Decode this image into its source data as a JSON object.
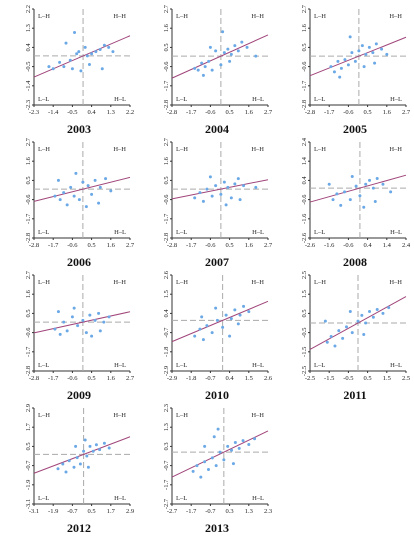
{
  "colors": {
    "points": "#6aa8e6",
    "trend_line": "#a0457a",
    "quadrant_lines": "#aaaaaa",
    "axes": "#333333"
  },
  "chart_data": [
    {
      "type": "scatter",
      "title": "2003",
      "xticks": [
        "-2.3",
        "-1.4",
        "-0.5",
        "0.4",
        "1.3",
        "2.2"
      ],
      "yticks": [
        "2.2",
        "1.3",
        "0.4",
        "-0.5",
        "-1.4",
        "-2.3"
      ],
      "xlim": [
        -2.3,
        2.2
      ],
      "ylim": [
        -2.3,
        2.2
      ],
      "quadrant_labels": {
        "tl": "L–H",
        "tr": "H–H",
        "bl": "L–L",
        "br": "H–L"
      },
      "slope": 0.43,
      "points": [
        [
          -1.6,
          -0.5
        ],
        [
          -1.4,
          -0.6
        ],
        [
          -1.1,
          -0.3
        ],
        [
          -0.9,
          -0.5
        ],
        [
          -0.6,
          -0.2
        ],
        [
          -0.5,
          -0.6
        ],
        [
          -0.3,
          0.1
        ],
        [
          -0.2,
          0.2
        ],
        [
          -0.1,
          -0.7
        ],
        [
          0.1,
          0.4
        ],
        [
          0.2,
          0.0
        ],
        [
          0.4,
          0.1
        ],
        [
          0.6,
          0.2
        ],
        [
          0.8,
          0.3
        ],
        [
          1.0,
          0.5
        ],
        [
          1.2,
          0.4
        ],
        [
          1.4,
          0.2
        ],
        [
          -0.4,
          1.1
        ],
        [
          0.3,
          -0.4
        ],
        [
          0.9,
          -0.6
        ],
        [
          -0.8,
          0.6
        ]
      ]
    },
    {
      "type": "scatter",
      "title": "2004",
      "xticks": [
        "-2.8",
        "-1.7",
        "-0.6",
        "0.5",
        "1.6",
        "2.7"
      ],
      "yticks": [
        "2.7",
        "1.6",
        "0.5",
        "-0.6",
        "-1.7",
        "-2.8"
      ],
      "xlim": [
        -2.8,
        2.7
      ],
      "ylim": [
        -2.8,
        2.7
      ],
      "quadrant_labels": {
        "tl": "L–H",
        "tr": "H–H",
        "bl": "L–L",
        "br": "H–L"
      },
      "slope": 0.45,
      "points": [
        [
          -1.5,
          -0.7
        ],
        [
          -1.3,
          -0.8
        ],
        [
          -1.1,
          -0.4
        ],
        [
          -0.9,
          -0.6
        ],
        [
          -0.7,
          -0.3
        ],
        [
          -0.5,
          -0.8
        ],
        [
          -0.3,
          0.3
        ],
        [
          0.0,
          -0.5
        ],
        [
          0.2,
          0.2
        ],
        [
          0.4,
          0.4
        ],
        [
          0.6,
          0.1
        ],
        [
          0.8,
          0.6
        ],
        [
          1.0,
          0.3
        ],
        [
          1.2,
          0.8
        ],
        [
          1.5,
          0.5
        ],
        [
          0.1,
          1.4
        ],
        [
          -0.6,
          0.5
        ],
        [
          0.5,
          -0.3
        ],
        [
          -1.0,
          -1.1
        ],
        [
          2.0,
          0.0
        ]
      ]
    },
    {
      "type": "scatter",
      "title": "2005",
      "xticks": [
        "-2.8",
        "-1.7",
        "-0.6",
        "0.5",
        "1.6",
        "2.7"
      ],
      "yticks": [
        "2.7",
        "1.6",
        "0.5",
        "-0.6",
        "-1.7",
        "-2.8"
      ],
      "xlim": [
        -2.8,
        2.7
      ],
      "ylim": [
        -2.8,
        2.7
      ],
      "quadrant_labels": {
        "tl": "L–H",
        "tr": "H–H",
        "bl": "L–L",
        "br": "H–L"
      },
      "slope": 0.4,
      "points": [
        [
          -1.6,
          -0.6
        ],
        [
          -1.4,
          -0.9
        ],
        [
          -1.2,
          -0.3
        ],
        [
          -1.0,
          -0.7
        ],
        [
          -0.8,
          -0.2
        ],
        [
          -0.6,
          -0.5
        ],
        [
          -0.4,
          0.2
        ],
        [
          -0.2,
          -0.3
        ],
        [
          0.0,
          0.3
        ],
        [
          0.2,
          0.6
        ],
        [
          0.4,
          0.1
        ],
        [
          0.6,
          0.5
        ],
        [
          0.8,
          0.2
        ],
        [
          1.0,
          0.7
        ],
        [
          1.3,
          0.4
        ],
        [
          1.6,
          0.1
        ],
        [
          -0.5,
          1.1
        ],
        [
          0.3,
          -0.6
        ],
        [
          -1.1,
          -1.2
        ],
        [
          0.9,
          -0.4
        ]
      ]
    },
    {
      "type": "scatter",
      "title": "2006",
      "xticks": [
        "-2.8",
        "-1.7",
        "-0.6",
        "0.5",
        "1.6",
        "2.7"
      ],
      "yticks": [
        "2.7",
        "1.6",
        "0.5",
        "-0.6",
        "-1.7",
        "-2.8"
      ],
      "xlim": [
        -2.8,
        2.7
      ],
      "ylim": [
        -2.8,
        2.7
      ],
      "quadrant_labels": {
        "tl": "L–H",
        "tr": "H–H",
        "bl": "L–L",
        "br": "H–L"
      },
      "slope": 0.25,
      "points": [
        [
          -1.6,
          -0.4
        ],
        [
          -1.3,
          -0.6
        ],
        [
          -1.1,
          -0.2
        ],
        [
          -0.9,
          -0.9
        ],
        [
          -0.7,
          0.1
        ],
        [
          -0.5,
          -0.4
        ],
        [
          -0.2,
          -0.6
        ],
        [
          0.0,
          0.4
        ],
        [
          0.3,
          0.2
        ],
        [
          0.5,
          -0.3
        ],
        [
          0.7,
          0.5
        ],
        [
          1.0,
          0.1
        ],
        [
          1.3,
          0.6
        ],
        [
          -0.4,
          0.9
        ],
        [
          0.2,
          -1.0
        ],
        [
          0.9,
          -0.8
        ],
        [
          -1.4,
          0.5
        ],
        [
          1.6,
          -0.1
        ]
      ]
    },
    {
      "type": "scatter",
      "title": "2007",
      "xticks": [
        "-2.8",
        "-1.7",
        "-0.6",
        "0.5",
        "1.6",
        "2.7"
      ],
      "yticks": [
        "2.7",
        "1.6",
        "0.5",
        "-0.6",
        "-1.7",
        "-2.8"
      ],
      "xlim": [
        -2.8,
        2.7
      ],
      "ylim": [
        -2.8,
        2.7
      ],
      "quadrant_labels": {
        "tl": "L–H",
        "tr": "H–H",
        "bl": "L–L",
        "br": "H–L"
      },
      "slope": 0.2,
      "points": [
        [
          -1.5,
          -0.5
        ],
        [
          -1.2,
          -0.2
        ],
        [
          -1.0,
          -0.7
        ],
        [
          -0.8,
          0.0
        ],
        [
          -0.5,
          -0.4
        ],
        [
          -0.3,
          0.2
        ],
        [
          0.0,
          -0.3
        ],
        [
          0.2,
          0.4
        ],
        [
          0.4,
          0.1
        ],
        [
          0.6,
          -0.5
        ],
        [
          0.8,
          0.3
        ],
        [
          1.0,
          0.6
        ],
        [
          1.3,
          0.2
        ],
        [
          -0.6,
          0.7
        ],
        [
          0.3,
          -0.9
        ],
        [
          1.1,
          -0.6
        ],
        [
          2.0,
          0.1
        ]
      ]
    },
    {
      "type": "scatter",
      "title": "2008",
      "xticks": [
        "-2.6",
        "-1.6",
        "-0.6",
        "0.4",
        "1.4",
        "2.4"
      ],
      "yticks": [
        "2.4",
        "1.4",
        "0.4",
        "-0.6",
        "-1.6",
        "-2.6"
      ],
      "xlim": [
        -2.6,
        2.4
      ],
      "ylim": [
        -2.6,
        2.4
      ],
      "quadrant_labels": {
        "tl": "L–H",
        "tr": "H–H",
        "bl": "L–L",
        "br": "H–L"
      },
      "slope": 0.28,
      "points": [
        [
          -1.4,
          -0.6
        ],
        [
          -1.2,
          -0.3
        ],
        [
          -1.0,
          -0.9
        ],
        [
          -0.8,
          -0.2
        ],
        [
          -0.5,
          -0.6
        ],
        [
          -0.2,
          0.1
        ],
        [
          0.0,
          -0.4
        ],
        [
          0.3,
          0.2
        ],
        [
          0.5,
          0.4
        ],
        [
          0.7,
          0.0
        ],
        [
          0.9,
          0.5
        ],
        [
          1.2,
          0.2
        ],
        [
          -0.4,
          0.6
        ],
        [
          0.2,
          -1.0
        ],
        [
          0.8,
          -0.7
        ],
        [
          1.6,
          -0.2
        ],
        [
          -1.6,
          0.2
        ]
      ]
    },
    {
      "type": "scatter",
      "title": "2009",
      "xticks": [
        "-2.8",
        "-1.7",
        "-0.6",
        "0.5",
        "1.6",
        "2.7"
      ],
      "yticks": [
        "2.7",
        "1.6",
        "0.5",
        "-0.6",
        "-1.7",
        "-2.8"
      ],
      "xlim": [
        -2.8,
        2.7
      ],
      "ylim": [
        -2.8,
        2.7
      ],
      "quadrant_labels": {
        "tl": "L–H",
        "tr": "H–H",
        "bl": "L–L",
        "br": "H–L"
      },
      "slope": 0.22,
      "points": [
        [
          -1.6,
          -0.4
        ],
        [
          -1.3,
          -0.7
        ],
        [
          -1.1,
          0.0
        ],
        [
          -0.9,
          -0.5
        ],
        [
          -0.6,
          0.3
        ],
        [
          -0.3,
          -0.2
        ],
        [
          0.0,
          0.1
        ],
        [
          0.2,
          -0.6
        ],
        [
          0.4,
          0.4
        ],
        [
          0.7,
          0.1
        ],
        [
          0.9,
          0.5
        ],
        [
          1.2,
          0.0
        ],
        [
          1.5,
          0.3
        ],
        [
          -0.5,
          0.8
        ],
        [
          0.5,
          -0.8
        ],
        [
          -1.4,
          0.6
        ],
        [
          1.0,
          -0.5
        ]
      ]
    },
    {
      "type": "scatter",
      "title": "2010",
      "xticks": [
        "-2.9",
        "-1.8",
        "-0.7",
        "0.4",
        "1.5",
        "2.6"
      ],
      "yticks": [
        "2.6",
        "1.5",
        "0.4",
        "-0.7",
        "-1.8",
        "-2.9"
      ],
      "xlim": [
        -2.9,
        2.6
      ],
      "ylim": [
        -2.9,
        2.6
      ],
      "quadrant_labels": {
        "tl": "L–H",
        "tr": "H–H",
        "bl": "L–L",
        "br": "H–L"
      },
      "slope": 0.42,
      "points": [
        [
          -1.6,
          -0.9
        ],
        [
          -1.3,
          -0.5
        ],
        [
          -1.1,
          -1.1
        ],
        [
          -0.9,
          -0.3
        ],
        [
          -0.6,
          -0.7
        ],
        [
          -0.3,
          0.0
        ],
        [
          0.0,
          -0.4
        ],
        [
          0.2,
          0.3
        ],
        [
          0.5,
          0.1
        ],
        [
          0.7,
          0.6
        ],
        [
          1.0,
          0.3
        ],
        [
          1.2,
          0.8
        ],
        [
          1.5,
          0.5
        ],
        [
          -0.4,
          0.7
        ],
        [
          0.4,
          -0.9
        ],
        [
          -1.2,
          0.2
        ],
        [
          0.9,
          -0.2
        ]
      ]
    },
    {
      "type": "scatter",
      "title": "2011",
      "xticks": [
        "-2.5",
        "-1.5",
        "-0.5",
        "0.5",
        "1.5",
        "2.5"
      ],
      "yticks": [
        "2.5",
        "1.5",
        "0.5",
        "-0.5",
        "-1.5",
        "-2.5"
      ],
      "xlim": [
        -2.5,
        2.5
      ],
      "ylim": [
        -2.5,
        2.5
      ],
      "quadrant_labels": {
        "tl": "L–H",
        "tr": "H–H",
        "bl": "L–L",
        "br": "H–L"
      },
      "slope": 0.55,
      "points": [
        [
          -1.6,
          -1.0
        ],
        [
          -1.4,
          -0.7
        ],
        [
          -1.2,
          -1.2
        ],
        [
          -1.0,
          -0.4
        ],
        [
          -0.8,
          -0.8
        ],
        [
          -0.6,
          -0.2
        ],
        [
          -0.3,
          -0.5
        ],
        [
          0.0,
          0.1
        ],
        [
          0.2,
          0.4
        ],
        [
          0.4,
          0.0
        ],
        [
          0.6,
          0.6
        ],
        [
          0.8,
          0.3
        ],
        [
          1.0,
          0.7
        ],
        [
          1.3,
          0.5
        ],
        [
          1.6,
          0.8
        ],
        [
          -0.4,
          0.6
        ],
        [
          0.3,
          -0.6
        ],
        [
          -1.7,
          0.1
        ]
      ]
    },
    {
      "type": "scatter",
      "title": "2012",
      "xticks": [
        "-3.1",
        "-1.9",
        "-0.7",
        "0.5",
        "1.7",
        "2.9"
      ],
      "yticks": [
        "2.9",
        "1.7",
        "0.5",
        "-0.7",
        "-1.9",
        "-3.1"
      ],
      "xlim": [
        -3.1,
        2.9
      ],
      "ylim": [
        -3.1,
        2.9
      ],
      "quadrant_labels": {
        "tl": "L–H",
        "tr": "H–H",
        "bl": "L–L",
        "br": "H–L"
      },
      "slope": 0.38,
      "points": [
        [
          -1.6,
          -0.9
        ],
        [
          -1.3,
          -0.6
        ],
        [
          -1.1,
          -1.1
        ],
        [
          -0.9,
          -0.4
        ],
        [
          -0.6,
          -0.8
        ],
        [
          -0.4,
          -0.2
        ],
        [
          -0.2,
          -0.6
        ],
        [
          0.0,
          0.2
        ],
        [
          0.2,
          -0.1
        ],
        [
          0.4,
          0.5
        ],
        [
          0.6,
          0.2
        ],
        [
          0.8,
          0.6
        ],
        [
          1.0,
          0.3
        ],
        [
          1.3,
          0.7
        ],
        [
          1.6,
          0.4
        ],
        [
          -0.5,
          0.5
        ],
        [
          0.3,
          -0.8
        ],
        [
          0.1,
          0.9
        ]
      ]
    },
    {
      "type": "scatter",
      "title": "2013",
      "xticks": [
        "-2.7",
        "-1.7",
        "-0.7",
        "0.3",
        "1.3",
        "2.3"
      ],
      "yticks": [
        "2.3",
        "1.3",
        "0.3",
        "-0.7",
        "-1.7",
        "-2.7"
      ],
      "xlim": [
        -2.7,
        2.3
      ],
      "ylim": [
        -2.7,
        2.3
      ],
      "quadrant_labels": {
        "tl": "L–H",
        "tr": "H–H",
        "bl": "L–L",
        "br": "H–L"
      },
      "slope": 0.48,
      "points": [
        [
          -1.6,
          -1.0
        ],
        [
          -1.4,
          -0.7
        ],
        [
          -1.2,
          -1.3
        ],
        [
          -1.0,
          -0.5
        ],
        [
          -0.8,
          -0.9
        ],
        [
          -0.6,
          -0.3
        ],
        [
          -0.4,
          -0.7
        ],
        [
          -0.2,
          0.0
        ],
        [
          0.0,
          -0.4
        ],
        [
          0.2,
          0.3
        ],
        [
          0.4,
          0.1
        ],
        [
          0.6,
          0.5
        ],
        [
          0.8,
          0.2
        ],
        [
          1.0,
          0.6
        ],
        [
          1.3,
          0.4
        ],
        [
          1.6,
          0.7
        ],
        [
          -0.5,
          0.8
        ],
        [
          -0.3,
          1.2
        ],
        [
          0.5,
          -0.6
        ],
        [
          -1.0,
          0.3
        ]
      ]
    }
  ]
}
